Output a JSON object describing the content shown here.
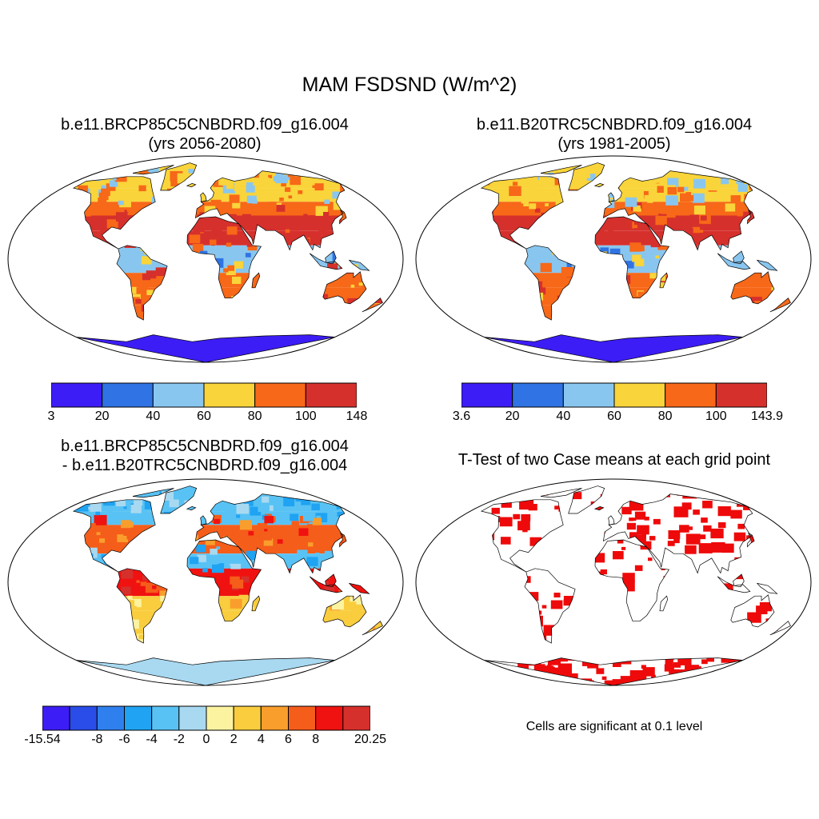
{
  "title": "MAM FSDSND (W/m^2)",
  "panels": [
    {
      "line1": "b.e11.BRCP85C5CNBDRD.f09_g16.004",
      "line2": "(yrs 2056-2080)",
      "colorbar": {
        "labels": [
          "3",
          "20",
          "40",
          "60",
          "80",
          "100",
          "148"
        ],
        "colors": [
          "#3c1df5",
          "#2f73e4",
          "#89c6ef",
          "#f9d43a",
          "#f76818",
          "#d6302c"
        ]
      }
    },
    {
      "line1": "b.e11.B20TRC5CNBDRD.f09_g16.004",
      "line2": "(yrs 1981-2005)",
      "colorbar": {
        "labels": [
          "3.6",
          "20",
          "40",
          "60",
          "80",
          "100",
          "143.9"
        ],
        "colors": [
          "#3c1df5",
          "#2f73e4",
          "#89c6ef",
          "#f9d43a",
          "#f76818",
          "#d6302c"
        ]
      }
    },
    {
      "line1": "b.e11.BRCP85C5CNBDRD.f09_g16.004",
      "line2": "- b.e11.B20TRC5CNBDRD.f09_g16.004",
      "colorbar": {
        "labels": [
          "-15.54",
          "-8",
          "-6",
          "-4",
          "-2",
          "0",
          "2",
          "4",
          "6",
          "8",
          "20.25"
        ],
        "colors": [
          "#3c1df5",
          "#2a4ce8",
          "#2f80ee",
          "#1fa3f2",
          "#58c2f4",
          "#a8d9f1",
          "#fcf3a0",
          "#f9cd3e",
          "#f99e2c",
          "#f55d1a",
          "#f01210",
          "#d6302c"
        ]
      }
    },
    {
      "line1": "T-Test of two Case means at each grid point",
      "note": "Cells are significant at 0.1 level",
      "sig_color": "#ee0a0a"
    }
  ],
  "colors": {
    "land_outline": "#000000",
    "ocean": "#ffffff"
  }
}
